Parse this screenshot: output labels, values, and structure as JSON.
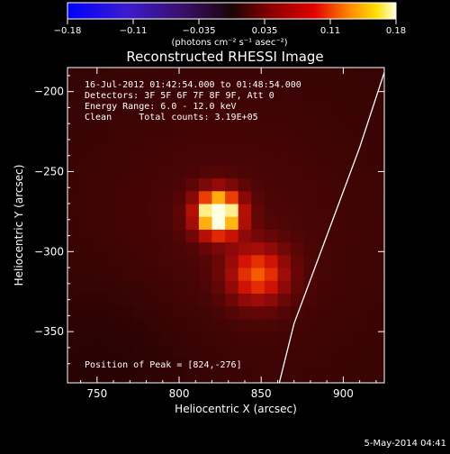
{
  "colorbar": {
    "ticks": [
      "−0.18",
      "−0.11",
      "−0.035",
      "0.035",
      "0.11",
      "0.18"
    ],
    "unit_label": "(photons cm⁻² s⁻¹ asec⁻²)"
  },
  "chart_data": {
    "type": "heatmap",
    "title": "Reconstructed RHESSI Image",
    "xlabel": "Heliocentric X (arcsec)",
    "ylabel": "Heliocentric Y (arcsec)",
    "xlim": [
      732,
      925
    ],
    "ylim": [
      -382,
      -185
    ],
    "xticks": [
      750,
      800,
      850,
      900
    ],
    "yticks": [
      -200,
      -250,
      -300,
      -350
    ],
    "colorbar_range": [
      -0.18,
      0.18
    ],
    "sources": [
      {
        "x": 824,
        "y": -276,
        "peak": 0.18
      },
      {
        "x": 848,
        "y": -314,
        "peak": 0.09
      }
    ],
    "limb_curve": [
      [
        925,
        -188
      ],
      [
        910,
        -235
      ],
      [
        890,
        -290
      ],
      [
        870,
        -345
      ],
      [
        861,
        -382
      ]
    ],
    "colors": {
      "background": "#000000",
      "limb": "#ffffff"
    }
  },
  "info": {
    "time_range": "16-Jul-2012 01:42:54.000 to 01:48:54.000",
    "detectors": "Detectors: 3F 5F 6F 7F 8F 9F, Att 0",
    "energy": "Energy Range: 6.0 - 12.0 keV",
    "clean": "Clean     Total counts: 3.19E+05",
    "peak": "Position of Peak = [824,-276]"
  },
  "footer": {
    "timestamp": "5-May-2014 04:41"
  }
}
